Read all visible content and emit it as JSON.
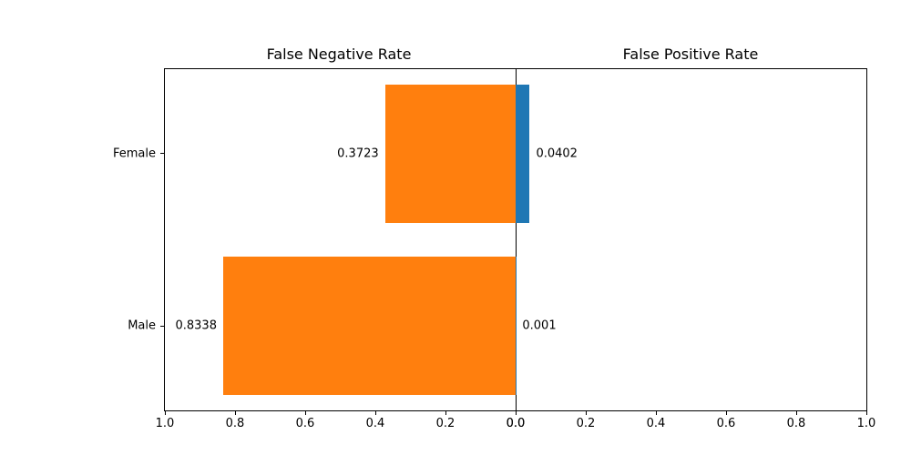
{
  "chart_data": {
    "type": "bar",
    "variant": "horizontal-diverging",
    "categories": [
      "Female",
      "Male"
    ],
    "series": [
      {
        "name": "False Negative Rate",
        "side": "left",
        "color": "#ff7f0e",
        "values": [
          0.3723,
          0.8338
        ],
        "value_labels": [
          "0.3723",
          "0.8338"
        ]
      },
      {
        "name": "False Positive Rate",
        "side": "right",
        "color": "#1f77b4",
        "values": [
          0.0402,
          0.001
        ],
        "value_labels": [
          "0.0402",
          "0.001"
        ]
      }
    ],
    "left_title": "False Negative Rate",
    "right_title": "False Positive Rate",
    "xlim": [
      0,
      1
    ],
    "x_ticks_left": [
      "1.0",
      "0.8",
      "0.6",
      "0.4",
      "0.2",
      "0.0"
    ],
    "x_ticks_right": [
      "0.0",
      "0.2",
      "0.4",
      "0.6",
      "0.8",
      "1.0"
    ],
    "grid": false,
    "legend": "none",
    "background_color": "#ffffff",
    "axis_color": "#000000"
  }
}
